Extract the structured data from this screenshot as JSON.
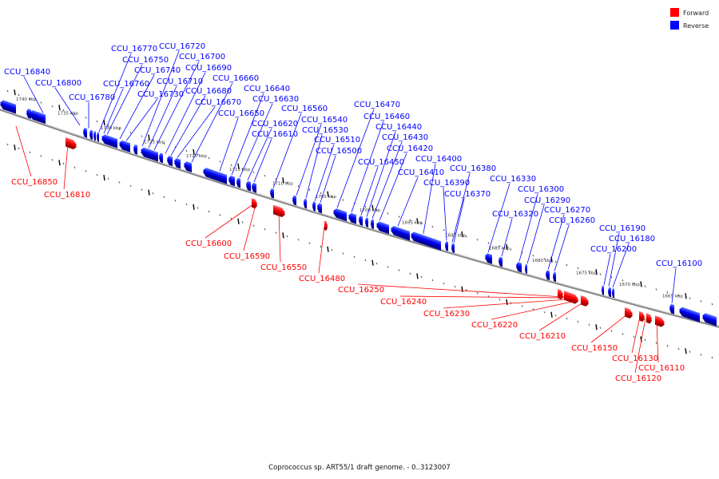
{
  "caption": "Coprococcus sp. ART55/1 draft genome. - 0..3123007",
  "legend": [
    {
      "label": "Forward",
      "color": "#ff0000"
    },
    {
      "label": "Reverse",
      "color": "#0000ff"
    }
  ],
  "colors": {
    "forward": "#ff0000",
    "reverse": "#0000ff",
    "backbone": "#888888",
    "tick": "#111111"
  },
  "ticks": [
    "1740 kbp",
    "1735 kbp",
    "1730 kbp",
    "1725 kbp",
    "1720 kbp",
    "1715 kbp",
    "1710 kbp",
    "1705 kbp",
    "1700 kbp",
    "1695 kbp",
    "1690 kbp",
    "1685 kbp",
    "1680 kbp",
    "1675 kbp",
    "1670 kbp",
    "1665 kbp"
  ],
  "reverse_genes": [
    "CCU_16840",
    "CCU_16800",
    "CCU_16780",
    "CCU_16770",
    "CCU_16760",
    "CCU_16750",
    "CCU_16740",
    "CCU_16730",
    "CCU_16720",
    "CCU_16710",
    "CCU_16700",
    "CCU_16690",
    "CCU_16680",
    "CCU_16670",
    "CCU_16660",
    "CCU_16650",
    "CCU_16640",
    "CCU_16630",
    "CCU_16620",
    "CCU_16610",
    "CCU_16560",
    "CCU_16540",
    "CCU_16530",
    "CCU_16510",
    "CCU_16500",
    "CCU_16470",
    "CCU_16460",
    "CCU_16450",
    "CCU_16440",
    "CCU_16430",
    "CCU_16420",
    "CCU_16410",
    "CCU_16400",
    "CCU_16390",
    "CCU_16380",
    "CCU_16370",
    "CCU_16330",
    "CCU_16320",
    "CCU_16300",
    "CCU_16290",
    "CCU_16270",
    "CCU_16260",
    "CCU_16200",
    "CCU_16190",
    "CCU_16180",
    "CCU_16100"
  ],
  "forward_genes": [
    "CCU_16850",
    "CCU_16810",
    "CCU_16600",
    "CCU_16590",
    "CCU_16550",
    "CCU_16480",
    "CCU_16250",
    "CCU_16240",
    "CCU_16230",
    "CCU_16220",
    "CCU_16210",
    "CCU_16150",
    "CCU_16130",
    "CCU_16120",
    "CCU_16110"
  ]
}
